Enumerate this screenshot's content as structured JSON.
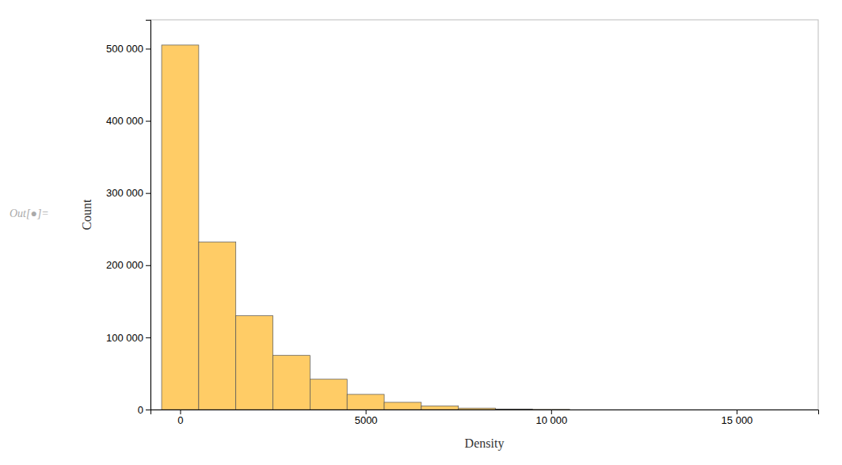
{
  "chart_data": {
    "type": "histogram",
    "xlabel": "Density",
    "ylabel": "Count",
    "annotation": "Out[●]=",
    "color": "#FFCC66",
    "bins": [
      -500,
      500,
      1500,
      2500,
      3500,
      4500,
      5500,
      6500,
      7500,
      8500,
      9500,
      10500
    ],
    "values": [
      505000,
      232000,
      130000,
      75000,
      42000,
      21000,
      10000,
      5000,
      2000,
      800,
      200
    ],
    "xlim": [
      -800,
      17200
    ],
    "ylim": [
      0,
      540000
    ],
    "xticks": [
      0,
      5000,
      {
        "value": 10000,
        "label": "10 000"
      },
      {
        "value": 15000,
        "label": "15 000"
      }
    ],
    "yticks": [
      0,
      {
        "value": 100000,
        "label": "100 000"
      },
      {
        "value": 200000,
        "label": "200 000"
      },
      {
        "value": 300000,
        "label": "300 000"
      },
      {
        "value": 400000,
        "label": "400 000"
      },
      {
        "value": 500000,
        "label": "500 000"
      }
    ],
    "grid": false
  }
}
